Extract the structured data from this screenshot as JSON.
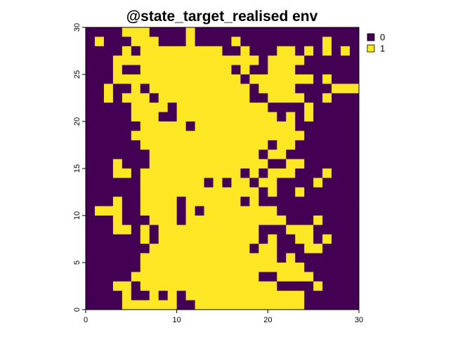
{
  "chart_data": {
    "type": "heatmap",
    "title": "@state_target_realised  env",
    "xlim": [
      0,
      30
    ],
    "ylim": [
      0,
      30
    ],
    "x_ticks": [
      "0",
      "10",
      "20",
      "30"
    ],
    "y_ticks": [
      "0",
      "5",
      "10",
      "15",
      "20",
      "25",
      "30"
    ],
    "legend": [
      {
        "label": "0",
        "color": "#440154"
      },
      {
        "label": "1",
        "color": "#FDE725"
      }
    ],
    "grid_rows_top_to_bottom": [
      "000011100001000000000000000000",
      "010001110001000010000000001000",
      "000010111111111001000110101010",
      "000111111111111111101111000000",
      "000100111111111101001110000000",
      "000111111111111110111111101000",
      "001001011111111111011110000111",
      "001011101111111111001111001000",
      "000001111011111111110000100000",
      "000001110011111111111010100000",
      "000000111110111111111110000000",
      "000001111111111111111111000000",
      "000000111111111111110110000000",
      "000000011111111111101100000000",
      "000100011111111111110011000000",
      "000110111111111110101110001000",
      "000000111111101011011000010000",
      "000000111111111111101001000000",
      "000100111101111110100000000000",
      "011100111101011111111000000000",
      "000100011101111111111100010000",
      "000110101111111111100011100000",
      "000000101111111111101001101000",
      "000000011111111111011000110000",
      "000000111111111111111010000000",
      "000000111111111111111111000000",
      "000001111111111111100111100000",
      "000110111111111111111000010000",
      "000010010101111111111111000000",
      "000011111100111111111111000000"
    ]
  }
}
